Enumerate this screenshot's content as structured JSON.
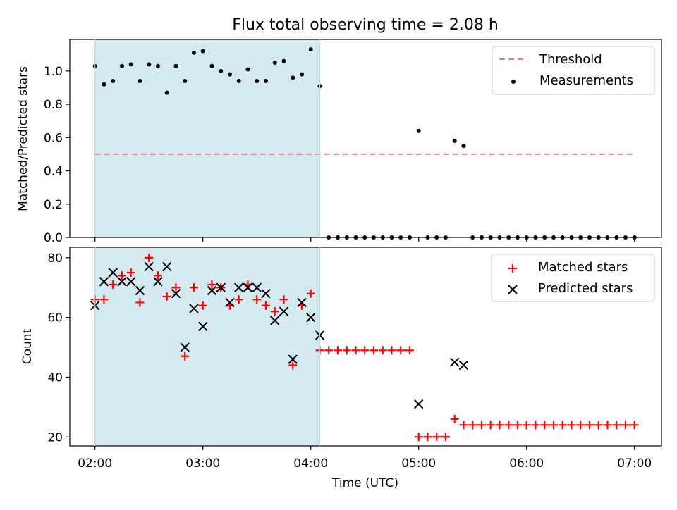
{
  "chart_data": [
    {
      "type": "scatter",
      "title": "Flux total observing time = 2.08 h",
      "xlabel": "",
      "ylabel": "Matched/Predicted stars",
      "xlim": [
        "01:46",
        "07:15"
      ],
      "ylim": [
        0,
        1.19
      ],
      "yticks": [
        "0.0",
        "0.2",
        "0.4",
        "0.6",
        "0.8",
        "1.0"
      ],
      "shaded_region": {
        "x_start": "02:00",
        "x_end": "04:05",
        "color": "#d4eaf0"
      },
      "legend_position": "top-right",
      "threshold": {
        "name": "Threshold",
        "value": 0.5,
        "x_start": "02:00",
        "x_end": "07:00",
        "color": "#f08080"
      },
      "series": [
        {
          "name": "Measurements",
          "color": "#000000",
          "x": [
            "02:00",
            "02:05",
            "02:10",
            "02:15",
            "02:20",
            "02:25",
            "02:30",
            "02:35",
            "02:40",
            "02:45",
            "02:50",
            "02:55",
            "03:00",
            "03:05",
            "03:10",
            "03:15",
            "03:20",
            "03:25",
            "03:30",
            "03:35",
            "03:40",
            "03:45",
            "03:50",
            "03:55",
            "04:00",
            "04:05",
            "04:10",
            "04:15",
            "04:20",
            "04:25",
            "04:30",
            "04:35",
            "04:40",
            "04:45",
            "04:50",
            "04:55",
            "05:00",
            "05:05",
            "05:10",
            "05:15",
            "05:20",
            "05:25",
            "05:30",
            "05:35",
            "05:40",
            "05:45",
            "05:50",
            "05:55",
            "06:00",
            "06:05",
            "06:10",
            "06:15",
            "06:20",
            "06:25",
            "06:30",
            "06:35",
            "06:40",
            "06:45",
            "06:50",
            "06:55",
            "07:00"
          ],
          "y": [
            1.03,
            0.92,
            0.94,
            1.03,
            1.04,
            0.94,
            1.04,
            1.03,
            0.87,
            1.03,
            0.94,
            1.11,
            1.12,
            1.03,
            1.0,
            0.98,
            0.94,
            1.01,
            0.94,
            0.94,
            1.05,
            1.06,
            0.96,
            0.98,
            1.13,
            0.91,
            0,
            0,
            0,
            0,
            0,
            0,
            0,
            0,
            0,
            0,
            0.64,
            0,
            0,
            0,
            0.58,
            0.55,
            0,
            0,
            0,
            0,
            0,
            0,
            0,
            0,
            0,
            0,
            0,
            0,
            0,
            0,
            0,
            0,
            0,
            0,
            0
          ]
        }
      ]
    },
    {
      "type": "scatter",
      "title": "",
      "xlabel": "Time (UTC)",
      "ylabel": "Count",
      "xlim": [
        "01:46",
        "07:15"
      ],
      "xticks": [
        "02:00",
        "03:00",
        "04:00",
        "05:00",
        "06:00",
        "07:00"
      ],
      "ylim": [
        17,
        83.5
      ],
      "yticks": [
        "20",
        "40",
        "60",
        "80"
      ],
      "shaded_region": {
        "x_start": "02:00",
        "x_end": "04:05",
        "color": "#d4eaf0"
      },
      "legend_position": "top-right",
      "series": [
        {
          "name": "Matched stars",
          "marker": "plus",
          "color": "#ff0000",
          "x": [
            "02:00",
            "02:05",
            "02:10",
            "02:15",
            "02:20",
            "02:25",
            "02:30",
            "02:35",
            "02:40",
            "02:45",
            "02:50",
            "02:55",
            "03:00",
            "03:05",
            "03:10",
            "03:15",
            "03:20",
            "03:25",
            "03:30",
            "03:35",
            "03:40",
            "03:45",
            "03:50",
            "03:55",
            "04:00",
            "04:05",
            "04:10",
            "04:15",
            "04:20",
            "04:25",
            "04:30",
            "04:35",
            "04:40",
            "04:45",
            "04:50",
            "04:55",
            "05:00",
            "05:05",
            "05:10",
            "05:15",
            "05:20",
            "05:25",
            "05:30",
            "05:35",
            "05:40",
            "05:45",
            "05:50",
            "05:55",
            "06:00",
            "06:05",
            "06:10",
            "06:15",
            "06:20",
            "06:25",
            "06:30",
            "06:35",
            "06:40",
            "06:45",
            "06:50",
            "06:55",
            "07:00"
          ],
          "y": [
            66,
            66,
            71,
            74,
            75,
            65,
            80,
            74,
            67,
            70,
            47,
            70,
            64,
            71,
            70,
            64,
            66,
            71,
            66,
            64,
            62,
            66,
            44,
            64,
            68,
            49,
            49,
            49,
            49,
            49,
            49,
            49,
            49,
            49,
            49,
            49,
            20,
            20,
            20,
            20,
            26,
            24,
            24,
            24,
            24,
            24,
            24,
            24,
            24,
            24,
            24,
            24,
            24,
            24,
            24,
            24,
            24,
            24,
            24,
            24,
            24
          ]
        },
        {
          "name": "Predicted stars",
          "marker": "x",
          "color": "#000000",
          "x": [
            "02:00",
            "02:05",
            "02:10",
            "02:15",
            "02:20",
            "02:25",
            "02:30",
            "02:35",
            "02:40",
            "02:45",
            "02:50",
            "02:55",
            "03:00",
            "03:05",
            "03:10",
            "03:15",
            "03:20",
            "03:25",
            "03:30",
            "03:35",
            "03:40",
            "03:45",
            "03:50",
            "03:55",
            "04:00",
            "04:05",
            "05:00",
            "05:20",
            "05:25"
          ],
          "y": [
            64,
            72,
            75,
            72,
            72,
            69,
            77,
            72,
            77,
            68,
            50,
            63,
            57,
            69,
            70,
            65,
            70,
            70,
            70,
            68,
            59,
            62,
            46,
            65,
            60,
            54,
            31,
            45,
            44
          ]
        }
      ]
    }
  ]
}
